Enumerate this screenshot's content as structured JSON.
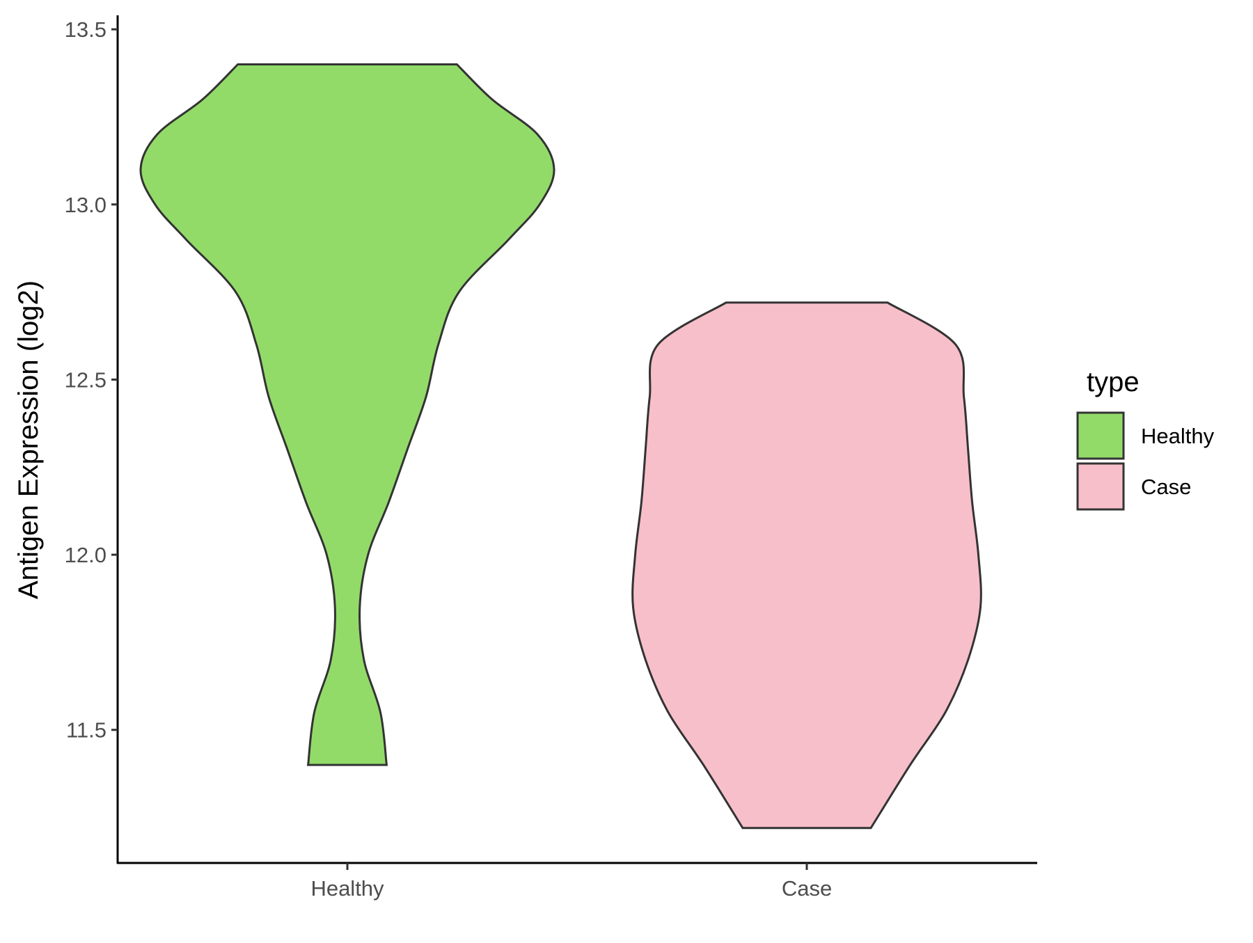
{
  "chart_data": {
    "type": "violin",
    "title": "",
    "xlabel": "",
    "ylabel": "Antigen Expression (log2)",
    "ylim": [
      11.12,
      13.54
    ],
    "yticks": [
      11.5,
      12.0,
      12.5,
      13.0,
      13.5
    ],
    "ytick_labels": [
      "11.5",
      "12.0",
      "12.5",
      "13.0",
      "13.5"
    ],
    "categories": [
      "Healthy",
      "Case"
    ],
    "legend": {
      "title": "type",
      "position": "right",
      "entries": [
        {
          "label": "Healthy",
          "color": "#93db69"
        },
        {
          "label": "Case",
          "color": "#f7bfca"
        }
      ]
    },
    "series": [
      {
        "name": "Healthy",
        "color": "#93db69",
        "min": 11.4,
        "max": 13.4,
        "density_profile": [
          [
            11.4,
            0.19
          ],
          [
            11.55,
            0.16
          ],
          [
            11.7,
            0.08
          ],
          [
            11.85,
            0.06
          ],
          [
            12.0,
            0.1
          ],
          [
            12.15,
            0.2
          ],
          [
            12.3,
            0.29
          ],
          [
            12.45,
            0.38
          ],
          [
            12.6,
            0.44
          ],
          [
            12.75,
            0.54
          ],
          [
            12.9,
            0.78
          ],
          [
            13.0,
            0.93
          ],
          [
            13.1,
            1.0
          ],
          [
            13.2,
            0.92
          ],
          [
            13.3,
            0.7
          ],
          [
            13.4,
            0.53
          ]
        ]
      },
      {
        "name": "Case",
        "color": "#f7bfca",
        "min": 11.22,
        "max": 12.72,
        "density_profile": [
          [
            11.22,
            0.31
          ],
          [
            11.4,
            0.5
          ],
          [
            11.55,
            0.67
          ],
          [
            11.7,
            0.78
          ],
          [
            11.85,
            0.84
          ],
          [
            12.0,
            0.83
          ],
          [
            12.15,
            0.8
          ],
          [
            12.3,
            0.78
          ],
          [
            12.45,
            0.76
          ],
          [
            12.6,
            0.72
          ],
          [
            12.72,
            0.39
          ]
        ]
      }
    ]
  }
}
